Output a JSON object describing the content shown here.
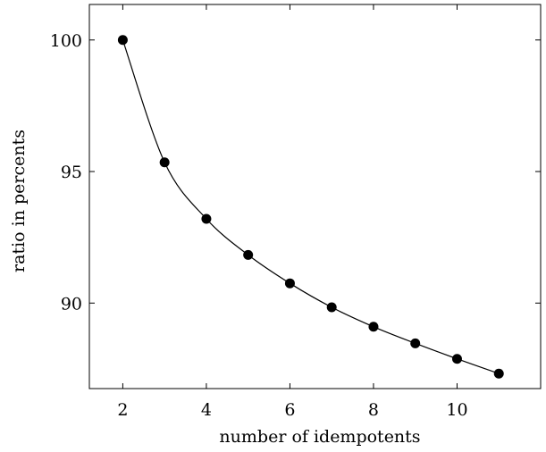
{
  "chart_data": {
    "type": "line",
    "title": "",
    "xlabel": "number of idempotents",
    "ylabel": "ratio in percents",
    "x": [
      2,
      3,
      4,
      5,
      6,
      7,
      8,
      9,
      10,
      11
    ],
    "series": [
      {
        "values": [
          100.0,
          95.35,
          93.2,
          91.83,
          90.75,
          89.84,
          89.1,
          88.47,
          87.88,
          87.32
        ],
        "color": "#000000",
        "marker": "circle",
        "smooth": true
      }
    ],
    "xlim": [
      1.2,
      12.0
    ],
    "ylim": [
      86.75,
      101.35
    ],
    "xticks": [
      2,
      4,
      6,
      8,
      10
    ],
    "yticks": [
      90,
      95,
      100
    ],
    "grid": false,
    "legend": "none"
  }
}
